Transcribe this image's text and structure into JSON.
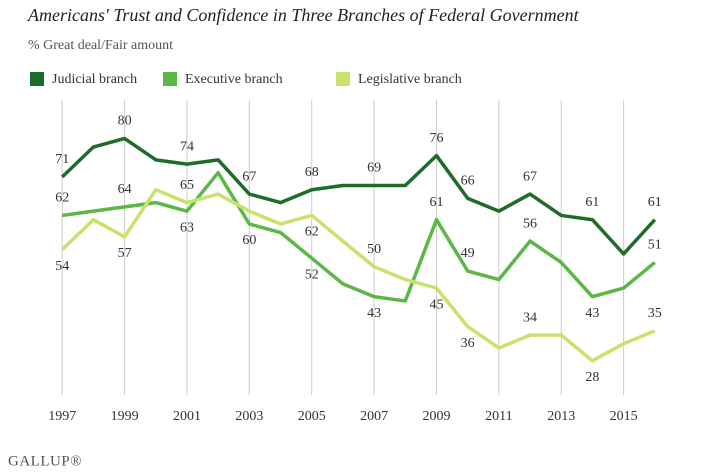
{
  "chart_data": {
    "type": "line",
    "title": "Americans' Trust and Confidence in Three Branches of Federal Government",
    "subtitle": "% Great deal/Fair amount",
    "source": "GALLUP®",
    "x": [
      1997,
      1998,
      1999,
      2000,
      2001,
      2002,
      2003,
      2004,
      2005,
      2006,
      2007,
      2008,
      2009,
      2010,
      2011,
      2012,
      2013,
      2014,
      2015,
      2016
    ],
    "xlim": [
      1996,
      2017
    ],
    "xticks": [
      1997,
      1999,
      2001,
      2003,
      2005,
      2007,
      2009,
      2011,
      2013,
      2015
    ],
    "ylim": [
      20,
      89
    ],
    "grid": true,
    "series": [
      {
        "name": "Judicial branch",
        "color": "#1f6b2b",
        "values": [
          71,
          78,
          80,
          75,
          74,
          75,
          67,
          65,
          68,
          69,
          69,
          69,
          76,
          66,
          63,
          67,
          62,
          61,
          53,
          61
        ],
        "value_labels": [
          "71",
          null,
          "80",
          null,
          "74",
          null,
          "67",
          null,
          "68",
          null,
          "69",
          null,
          "76",
          "66",
          null,
          "67",
          null,
          "61",
          null,
          "61"
        ]
      },
      {
        "name": "Executive branch",
        "color": "#5bb746",
        "values": [
          62,
          63,
          64,
          65,
          63,
          72,
          60,
          58,
          52,
          46,
          43,
          42,
          61,
          49,
          47,
          56,
          51,
          43,
          45,
          51
        ],
        "value_labels": [
          "62",
          null,
          "64",
          null,
          "63",
          null,
          "60",
          null,
          "52",
          null,
          "43",
          null,
          "61",
          "49",
          null,
          "56",
          null,
          "43",
          null,
          "51"
        ]
      },
      {
        "name": "Legislative branch",
        "color": "#c8e26b",
        "values": [
          54,
          61,
          57,
          68,
          65,
          67,
          63,
          60,
          62,
          56,
          50,
          47,
          45,
          36,
          31,
          34,
          34,
          28,
          32,
          35
        ],
        "value_labels": [
          "54",
          null,
          "57",
          null,
          "65",
          null,
          null,
          null,
          "62",
          null,
          "50",
          null,
          "45",
          "36",
          null,
          "34",
          null,
          "28",
          null,
          "35"
        ]
      }
    ]
  }
}
